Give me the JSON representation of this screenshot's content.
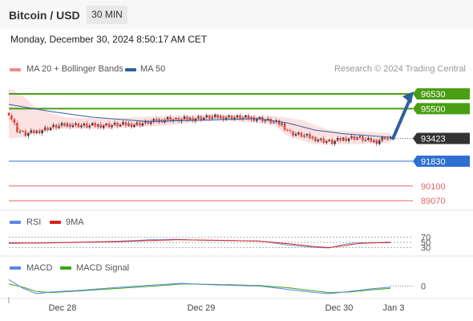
{
  "header": {
    "title": "Bitcoin / USD",
    "timeframe": "30 MIN"
  },
  "datetime": "Monday, December 30, 2024 8:50:17 AM CET",
  "legend": {
    "ma_bb": "MA 20 + Bollinger Bands",
    "ma50": "MA 50",
    "copyright": "Research © 2024 Trading Central",
    "rsi": "RSI",
    "rsi_ma": "9MA",
    "macd": "MACD",
    "macd_signal": "MACD Signal"
  },
  "colors": {
    "ma20": "#f08a8a",
    "ma50": "#2e5f9e",
    "bollinger_fill": "#fbdcdc",
    "resistance": "#4a9e14",
    "support_blue": "#2f6fd1",
    "support_red": "#e06666",
    "current_price": "#333333",
    "candle_up": "#333333",
    "candle_down": "#d93a3a",
    "rsi": "#5b86e5",
    "rsi_ma": "#d92020",
    "macd": "#5b86e5",
    "macd_signal": "#3aa318"
  },
  "chart_data": {
    "type": "candlestick",
    "title": "Bitcoin / USD",
    "interval": "30 MIN",
    "x_ticks": [
      "Dec 28",
      "Dec 29",
      "Dec 30",
      "Jan 3"
    ],
    "price_range": [
      88800,
      97200
    ],
    "current_price": 93423,
    "levels": [
      {
        "value": 96530,
        "label": "96530",
        "kind": "resistance"
      },
      {
        "value": 95500,
        "label": "95500",
        "kind": "resistance"
      },
      {
        "value": 93423,
        "label": "93423",
        "kind": "current"
      },
      {
        "value": 91830,
        "label": "91830",
        "kind": "support_blue"
      },
      {
        "value": 90100,
        "label": "90100",
        "kind": "support_red"
      },
      {
        "value": 89070,
        "label": "89070",
        "kind": "support_red"
      }
    ],
    "close_path": [
      [
        0,
        95200
      ],
      [
        3,
        94000
      ],
      [
        6,
        93700
      ],
      [
        10,
        93900
      ],
      [
        15,
        94200
      ],
      [
        22,
        94400
      ],
      [
        28,
        94300
      ],
      [
        35,
        94350
      ],
      [
        45,
        94400
      ],
      [
        52,
        94600
      ],
      [
        57,
        94800
      ],
      [
        60,
        94700
      ],
      [
        65,
        94800
      ],
      [
        72,
        94900
      ],
      [
        80,
        94900
      ],
      [
        90,
        94800
      ],
      [
        98,
        94400
      ],
      [
        101,
        93800
      ],
      [
        106,
        93600
      ],
      [
        112,
        93300
      ],
      [
        116,
        93150
      ],
      [
        120,
        93400
      ],
      [
        125,
        93500
      ],
      [
        128,
        93300
      ],
      [
        132,
        93200
      ],
      [
        135,
        93500
      ],
      [
        137,
        93400
      ]
    ],
    "ma50_path": [
      [
        0,
        95800
      ],
      [
        15,
        95300
      ],
      [
        30,
        94900
      ],
      [
        50,
        94600
      ],
      [
        70,
        94700
      ],
      [
        90,
        94800
      ],
      [
        100,
        94500
      ],
      [
        110,
        94000
      ],
      [
        120,
        93750
      ],
      [
        130,
        93600
      ],
      [
        137,
        93500
      ]
    ],
    "bollinger_upper": [
      [
        0,
        96900
      ],
      [
        5,
        96400
      ],
      [
        10,
        95500
      ],
      [
        20,
        94900
      ],
      [
        35,
        94800
      ],
      [
        55,
        95000
      ],
      [
        75,
        95100
      ],
      [
        95,
        95000
      ],
      [
        105,
        94700
      ],
      [
        115,
        94000
      ],
      [
        125,
        93900
      ],
      [
        137,
        93800
      ]
    ],
    "bollinger_lower": [
      [
        0,
        93400
      ],
      [
        5,
        93500
      ],
      [
        10,
        93900
      ],
      [
        20,
        94100
      ],
      [
        35,
        94100
      ],
      [
        55,
        94300
      ],
      [
        75,
        94700
      ],
      [
        95,
        94400
      ],
      [
        100,
        93600
      ],
      [
        110,
        93000
      ],
      [
        120,
        93000
      ],
      [
        137,
        93100
      ]
    ],
    "forecast_arrow": {
      "from": [
        137,
        93423
      ],
      "to": [
        145,
        96530
      ]
    },
    "rsi": {
      "levels": [
        70,
        50,
        30
      ],
      "range": [
        0,
        100
      ],
      "rsi_path": [
        [
          0,
          45
        ],
        [
          10,
          48
        ],
        [
          20,
          50
        ],
        [
          30,
          52
        ],
        [
          40,
          55
        ],
        [
          50,
          60
        ],
        [
          60,
          62
        ],
        [
          70,
          58
        ],
        [
          80,
          57
        ],
        [
          90,
          55
        ],
        [
          100,
          40
        ],
        [
          110,
          30
        ],
        [
          115,
          28
        ],
        [
          120,
          42
        ],
        [
          125,
          50
        ],
        [
          130,
          47
        ],
        [
          137,
          52
        ]
      ],
      "ma_path": [
        [
          0,
          48
        ],
        [
          10,
          47
        ],
        [
          20,
          49
        ],
        [
          30,
          51
        ],
        [
          40,
          53
        ],
        [
          50,
          57
        ],
        [
          60,
          60
        ],
        [
          70,
          59
        ],
        [
          80,
          57
        ],
        [
          90,
          55
        ],
        [
          100,
          45
        ],
        [
          110,
          33
        ],
        [
          115,
          30
        ],
        [
          120,
          37
        ],
        [
          125,
          45
        ],
        [
          130,
          48
        ],
        [
          137,
          49
        ]
      ]
    },
    "macd": {
      "zero_label": "0",
      "range": [
        -1,
        1
      ],
      "macd_path": [
        [
          0,
          0.6
        ],
        [
          5,
          -0.2
        ],
        [
          10,
          -0.7
        ],
        [
          15,
          -0.55
        ],
        [
          25,
          -0.4
        ],
        [
          40,
          -0.1
        ],
        [
          55,
          0.15
        ],
        [
          62,
          0.25
        ],
        [
          75,
          0.1
        ],
        [
          90,
          0.0
        ],
        [
          100,
          -0.3
        ],
        [
          110,
          -0.6
        ],
        [
          115,
          -0.7
        ],
        [
          122,
          -0.5
        ],
        [
          130,
          -0.25
        ],
        [
          137,
          -0.1
        ]
      ],
      "signal_path": [
        [
          0,
          0.2
        ],
        [
          5,
          -0.1
        ],
        [
          10,
          -0.5
        ],
        [
          15,
          -0.6
        ],
        [
          25,
          -0.45
        ],
        [
          40,
          -0.2
        ],
        [
          55,
          0.05
        ],
        [
          62,
          0.2
        ],
        [
          75,
          0.15
        ],
        [
          90,
          0.05
        ],
        [
          100,
          -0.15
        ],
        [
          110,
          -0.45
        ],
        [
          115,
          -0.6
        ],
        [
          122,
          -0.55
        ],
        [
          130,
          -0.35
        ],
        [
          137,
          -0.2
        ]
      ]
    }
  }
}
